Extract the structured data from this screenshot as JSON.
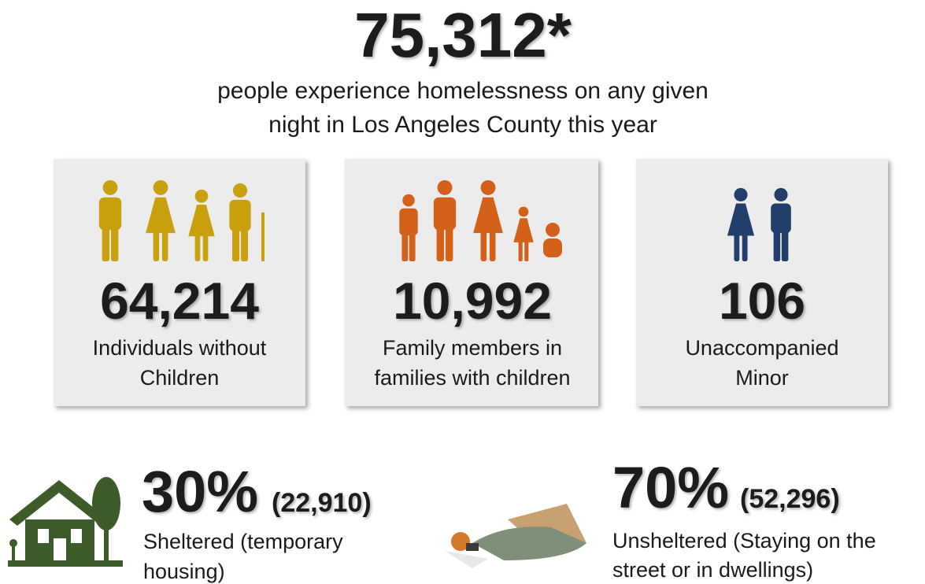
{
  "headline": "75,312*",
  "subtitle": [
    "people experience homelessness on any given",
    "night in Los Angeles County this year"
  ],
  "cards": [
    {
      "value": "64,214",
      "label": [
        "Individuals without",
        "Children"
      ]
    },
    {
      "value": "10,992",
      "label": [
        "Family members in",
        "families with children"
      ]
    },
    {
      "value": "106",
      "label": [
        "Unaccompanied",
        "Minor"
      ]
    }
  ],
  "sheltered": {
    "percent": "30%",
    "count": "(22,910)",
    "label": [
      "Sheltered (temporary",
      "housing)"
    ]
  },
  "unsheltered": {
    "percent": "70%",
    "count": "(52,296)",
    "label": [
      "Unsheltered (Staying on the",
      "street or in dwellings)"
    ]
  }
}
